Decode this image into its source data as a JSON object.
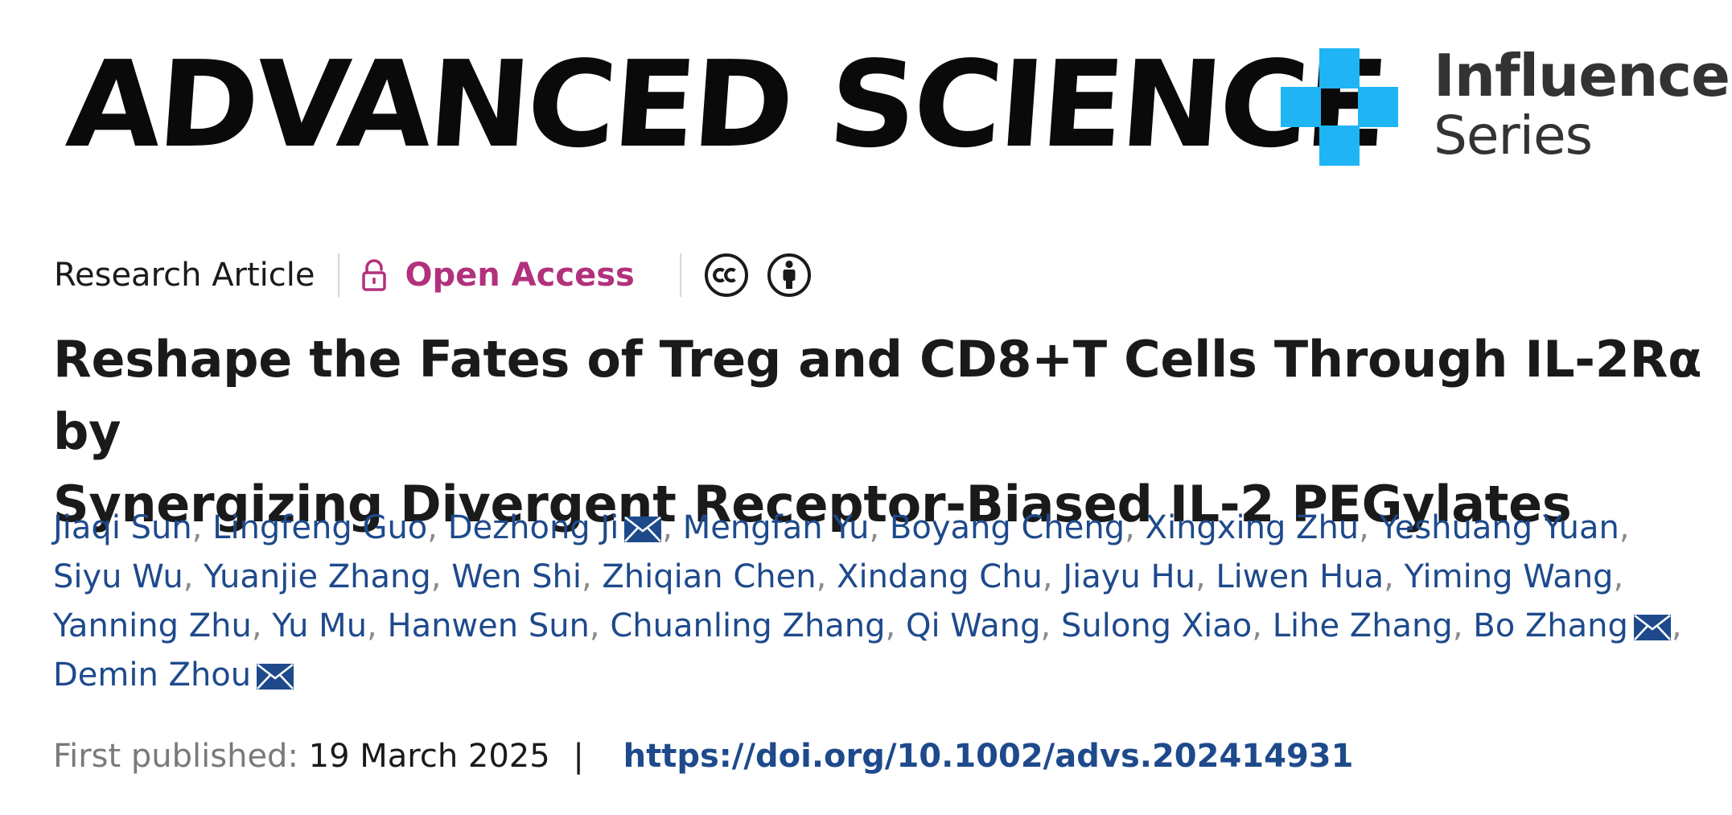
{
  "header": {
    "journal_name": "ADVANCED SCIENCE",
    "series_line1": "Influence",
    "series_line2": "Series",
    "series_color": "#1fb5f5"
  },
  "meta": {
    "article_type": "Research Article",
    "access_label": "Open Access",
    "access_color": "#b1317c",
    "license_icons": [
      "cc-icon",
      "by-attribution-icon"
    ]
  },
  "article": {
    "title_line1": "Reshape the Fates of Treg and CD8+T Cells Through IL-2Rα by",
    "title_line2": "Synergizing Divergent Receptor-Biased IL-2 PEGylates"
  },
  "authors": [
    {
      "name": "Jiaqi Sun",
      "corresponding": false
    },
    {
      "name": "Lingfeng Guo",
      "corresponding": false
    },
    {
      "name": "Dezhong Ji",
      "corresponding": true
    },
    {
      "name": "Mengfan Yu",
      "corresponding": false
    },
    {
      "name": "Boyang Cheng",
      "corresponding": false
    },
    {
      "name": "Xingxing Zhu",
      "corresponding": false
    },
    {
      "name": "Yeshuang Yuan",
      "corresponding": false
    },
    {
      "name": "Siyu Wu",
      "corresponding": false
    },
    {
      "name": "Yuanjie Zhang",
      "corresponding": false
    },
    {
      "name": "Wen Shi",
      "corresponding": false
    },
    {
      "name": "Zhiqian Chen",
      "corresponding": false
    },
    {
      "name": "Xindang Chu",
      "corresponding": false
    },
    {
      "name": "Jiayu Hu",
      "corresponding": false
    },
    {
      "name": "Liwen Hua",
      "corresponding": false
    },
    {
      "name": "Yiming Wang",
      "corresponding": false
    },
    {
      "name": "Yanning Zhu",
      "corresponding": false
    },
    {
      "name": "Yu Mu",
      "corresponding": false
    },
    {
      "name": "Hanwen Sun",
      "corresponding": false
    },
    {
      "name": "Chuanling Zhang",
      "corresponding": false
    },
    {
      "name": "Qi Wang",
      "corresponding": false
    },
    {
      "name": "Sulong Xiao",
      "corresponding": false
    },
    {
      "name": "Lihe Zhang",
      "corresponding": false
    },
    {
      "name": "Bo Zhang",
      "corresponding": true
    },
    {
      "name": "Demin Zhou",
      "corresponding": true
    }
  ],
  "publication": {
    "label": "First published:",
    "date": "19 March 2025",
    "separator": "|",
    "doi": "https://doi.org/10.1002/advs.202414931"
  }
}
